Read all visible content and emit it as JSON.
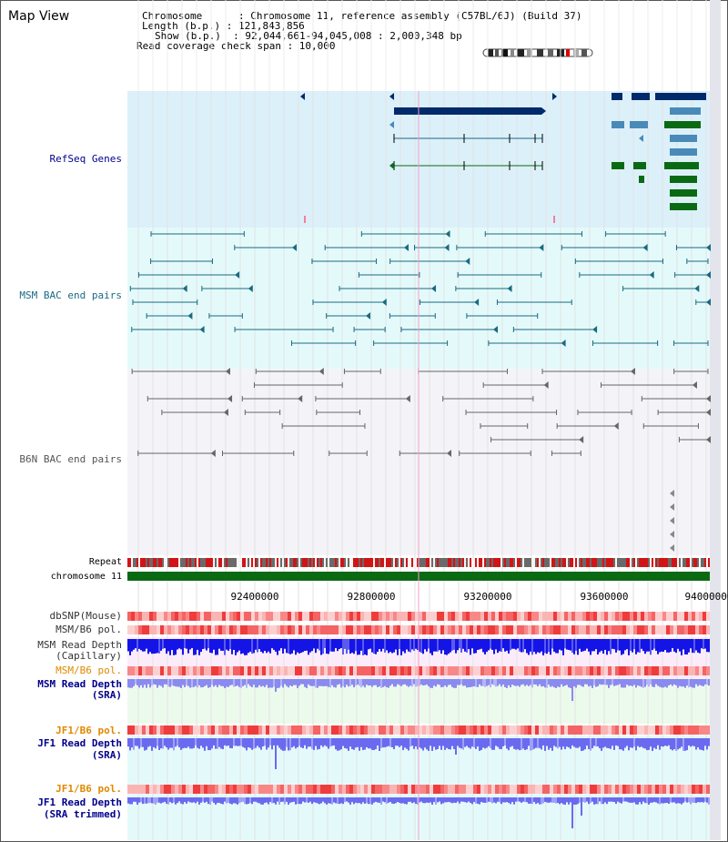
{
  "title": "Map View",
  "info": {
    "chromosome": "Chromosome      : Chromosome 11, reference assembly (C57BL/6J) (Build 37)",
    "length": "Length (b.p.) : 121,843,856",
    "show": "Show (b.p.)  : 92,044,661-94,045,008 : 2,000,348 bp",
    "coverage": "Read coverage check span : 10,000"
  },
  "tracks": {
    "refseq": "RefSeq Genes",
    "msm_bac": "MSM BAC end pairs",
    "b6n_bac": "B6N BAC end pairs",
    "repeat": "Repeat",
    "chromosome": "chromosome 11",
    "dbsnp": "dbSNP(Mouse)",
    "msm_b6_pol": "MSM/B6 pol.",
    "msm_depth_cap_1": "MSM Read Depth",
    "msm_depth_cap_2": "(Capillary)",
    "msm_b6_pol_2": "MSM/B6 pol.",
    "msm_depth_sra_1": "MSM Read Depth",
    "msm_depth_sra_2": "(SRA)",
    "jf1_b6_pol": "JF1/B6 pol.",
    "jf1_depth_1": "JF1 Read Depth",
    "jf1_depth_2": "(SRA)",
    "jf1_b6_pol_2": "JF1/B6 pol.",
    "jf1_trim_1": "JF1 Read Depth",
    "jf1_trim_2": "(SRA trimmed)"
  },
  "axis": {
    "ticks": [
      "92400000",
      "92800000",
      "93200000",
      "93600000",
      "94000000"
    ]
  },
  "colors": {
    "refseq_bg": "#dcf0fa",
    "msm_bg": "#e4fafa",
    "b6n_bg": "#f4f4f8",
    "refseq_dark": "#002a6a",
    "refseq_mid": "#4a8ab8",
    "refseq_green": "#0a6a14",
    "msm_line": "#1a6a82",
    "b6n_line": "#666666",
    "chromosome": "#0a6a14",
    "label_blue": "#00008b",
    "label_orange": "#e08800"
  }
}
